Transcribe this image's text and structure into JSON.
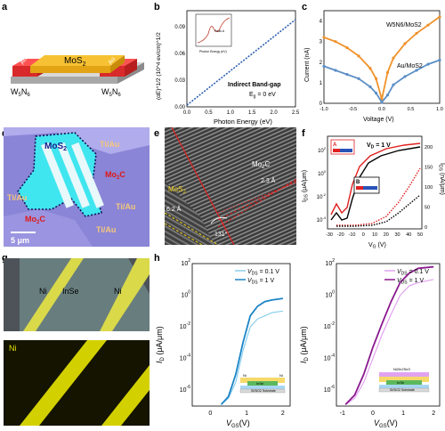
{
  "panels": {
    "a": {
      "letter": "a",
      "channel": "MoS",
      "channel_sub": "2",
      "contact_top": "Au",
      "contact_left": "W",
      "contact_left_sub1": "5",
      "contact_left_mid": "N",
      "contact_left_sub2": "6",
      "contact_right": "W",
      "contact_right_sub1": "5",
      "contact_right_mid": "N",
      "contact_right_sub2": "6"
    },
    "b": {
      "letter": "b",
      "ylabel": "(αE)^1/2 (10^4 ev/cm)^1/2",
      "xlabel": "Photon Energy (eV)",
      "xticks": [
        "0.0",
        "0.5",
        "1.0",
        "1.5",
        "2.0",
        "2.5"
      ],
      "yticks": [
        "0.00",
        "0.03",
        "0.06",
        "0.09"
      ],
      "annotation1": "Indirect Band-gap",
      "annotation2": "E",
      "annotation2_sub": "g",
      "annotation2_rest": " = 0 eV",
      "inset_xlabel": "Photon Energy (eV)",
      "inset_peak": "Peak A",
      "inset_xticks": [
        "1",
        "2",
        "3",
        "4",
        "5"
      ]
    },
    "c": {
      "letter": "c",
      "ylabel": "Current (nA)",
      "xlabel": "Voltage (V)",
      "xticks": [
        "-1.0",
        "-0.5",
        "0.0",
        "0.5",
        "1.0"
      ],
      "yticks": [
        "0",
        "1",
        "2",
        "3",
        "4"
      ],
      "legend1": "W5N6/MoS2",
      "legend2": "Au/MoS2",
      "color1": "#f0922b",
      "color2": "#5b8fc7"
    },
    "d": {
      "letter": "d",
      "label_mos2": "MoS",
      "label_mos2_sub": "2",
      "label_tiau1": "Ti/Au",
      "label_tiau2": "Ti/Au",
      "label_tiau3": "Ti/Au",
      "label_tiau4": "Ti/Au",
      "label_mo2c1": "Mo",
      "label_mo2c1_sub": "2",
      "label_mo2c1_rest": "C",
      "label_mo2c2": "Mo",
      "label_mo2c2_sub": "2",
      "label_mo2c2_rest": "C",
      "scale": "5 μm"
    },
    "e": {
      "letter": "e",
      "label_mo2c": "Mo",
      "label_mo2c_sub": "2",
      "label_mo2c_rest": "C",
      "label_mos2": "MoS",
      "label_mos2_sub": "2",
      "spacing1": "2.3 Å",
      "spacing2": "6.2 Å",
      "angle": "131°"
    },
    "f": {
      "letter": "f",
      "title": "V",
      "title_sub": "D",
      "title_rest": " = 1 V",
      "ylabel_left": "I_DS (μA/μm)",
      "ylabel_right": "I_DS (nA/μm)",
      "xlabel": "V_G (V)",
      "xticks": [
        "-30",
        "-20",
        "-10",
        "0",
        "10",
        "20",
        "30",
        "40",
        "50"
      ],
      "yticks_left": [
        "10^-4",
        "10^-2",
        "10^0",
        "10^2"
      ],
      "yticks_right": [
        "0",
        "50",
        "100",
        "150",
        "200"
      ],
      "insetA": "A",
      "insetB": "B",
      "inset_sio2": "SiO2/Si",
      "inset_mo2c": "Mo2C",
      "inset_mos2": "MoS2"
    },
    "g": {
      "letter": "g",
      "label_ni1": "Ni",
      "label_inse": "InSe",
      "label_ni2": "Ni",
      "label_ni3": "Ni"
    },
    "h": {
      "letter": "h",
      "legend1": "V",
      "legend1_sub": "DS",
      "legend1_rest": " = 0.1 V",
      "legend2": "V",
      "legend2_sub": "DS",
      "legend2_rest": " = 1 V",
      "ylabel": "I",
      "ylabel_sub": "D",
      "ylabel_rest": " (μA/μm)",
      "xlabel": "V",
      "xlabel_sub": "GS",
      "xlabel_rest": "(V)",
      "yticks": [
        "10^2",
        "10^0",
        "10^-2",
        "10^-4",
        "10^-6"
      ],
      "left_xticks": [
        "0",
        "1",
        "2"
      ],
      "right_xticks": [
        "-1",
        "0",
        "1",
        "2"
      ],
      "stack_ni": "Ni",
      "stack_inse": "InSe",
      "stack_g": "G",
      "stack_sub": "Si/SiO2 Substrate",
      "stack_r_top": "Ni2In2Se3",
      "color_light_blue": "#8ccfee",
      "color_blue": "#1b84c6",
      "color_light_purple": "#e1a3ef",
      "color_purple": "#8a198e"
    }
  },
  "chart_data": [
    {
      "type": "line",
      "panel": "b",
      "xlabel": "Photon Energy (eV)",
      "ylabel": "(αE)^1/2 (10^4 ev/cm)^1/2",
      "xlim": [
        0,
        2.5
      ],
      "ylim": [
        0,
        0.11
      ],
      "series": [
        {
          "x": [
            0.0,
            0.5,
            1.0,
            1.5,
            2.0,
            2.5
          ],
          "y": [
            0.005,
            0.022,
            0.04,
            0.058,
            0.077,
            0.095
          ]
        }
      ]
    },
    {
      "type": "scatter",
      "panel": "c",
      "xlabel": "Voltage (V)",
      "ylabel": "Current (nA)",
      "xlim": [
        -1.0,
        1.0
      ],
      "ylim": [
        0,
        4.5
      ],
      "series": [
        {
          "name": "W5N6/MoS2",
          "x": [
            -1.0,
            -0.8,
            -0.6,
            -0.4,
            -0.2,
            -0.1,
            0.0,
            0.1,
            0.2,
            0.4,
            0.6,
            0.8,
            1.0
          ],
          "y": [
            3.2,
            3.0,
            2.7,
            2.3,
            1.7,
            1.2,
            0.2,
            1.5,
            2.2,
            2.9,
            3.4,
            3.8,
            4.2
          ]
        },
        {
          "name": "Au/MoS2",
          "x": [
            -1.0,
            -0.8,
            -0.6,
            -0.4,
            -0.2,
            -0.1,
            0.0,
            0.1,
            0.2,
            0.4,
            0.6,
            0.8,
            1.0
          ],
          "y": [
            1.8,
            1.6,
            1.4,
            1.2,
            0.8,
            0.5,
            0.05,
            0.4,
            0.9,
            1.3,
            1.6,
            1.9,
            2.1
          ]
        }
      ]
    },
    {
      "type": "line",
      "panel": "h-left",
      "xlabel": "VGS(V)",
      "ylabel": "ID (μA/μm)",
      "xlim": [
        -0.5,
        2.2
      ],
      "ylim_log10": [
        -7,
        2
      ],
      "series": [
        {
          "name": "VDS = 0.1 V",
          "x": [
            0.3,
            0.5,
            0.7,
            0.9,
            1.1,
            1.3,
            1.5,
            1.7,
            2.0
          ],
          "log10y": [
            -6.9,
            -6.5,
            -5.5,
            -3.5,
            -2.0,
            -1.5,
            -1.3,
            -1.1,
            -1.0
          ]
        },
        {
          "name": "VDS = 1 V",
          "x": [
            0.3,
            0.5,
            0.7,
            0.9,
            1.1,
            1.3,
            1.5,
            1.7,
            2.0
          ],
          "log10y": [
            -6.9,
            -6.4,
            -5.0,
            -3.0,
            -1.3,
            -0.7,
            -0.4,
            -0.3,
            -0.2
          ]
        }
      ]
    },
    {
      "type": "line",
      "panel": "h-right",
      "xlabel": "VGS(V)",
      "ylabel": "ID (μA/μm)",
      "xlim": [
        -1.2,
        2.2
      ],
      "ylim_log10": [
        -7,
        2
      ],
      "series": [
        {
          "name": "VDS = 0.1 V",
          "x": [
            -0.9,
            -0.6,
            -0.3,
            0.0,
            0.3,
            0.6,
            0.9,
            1.2,
            1.5,
            2.0
          ],
          "log10y": [
            -6.9,
            -6.5,
            -5.5,
            -4.0,
            -2.5,
            -1.2,
            0.0,
            0.6,
            0.8,
            1.0
          ]
        },
        {
          "name": "VDS = 1 V",
          "x": [
            -0.9,
            -0.6,
            -0.3,
            0.0,
            0.3,
            0.6,
            0.9,
            1.2,
            1.5,
            2.0
          ],
          "log10y": [
            -6.9,
            -6.3,
            -5.0,
            -3.3,
            -1.8,
            -0.4,
            0.8,
            1.4,
            1.7,
            1.8
          ]
        }
      ]
    }
  ]
}
